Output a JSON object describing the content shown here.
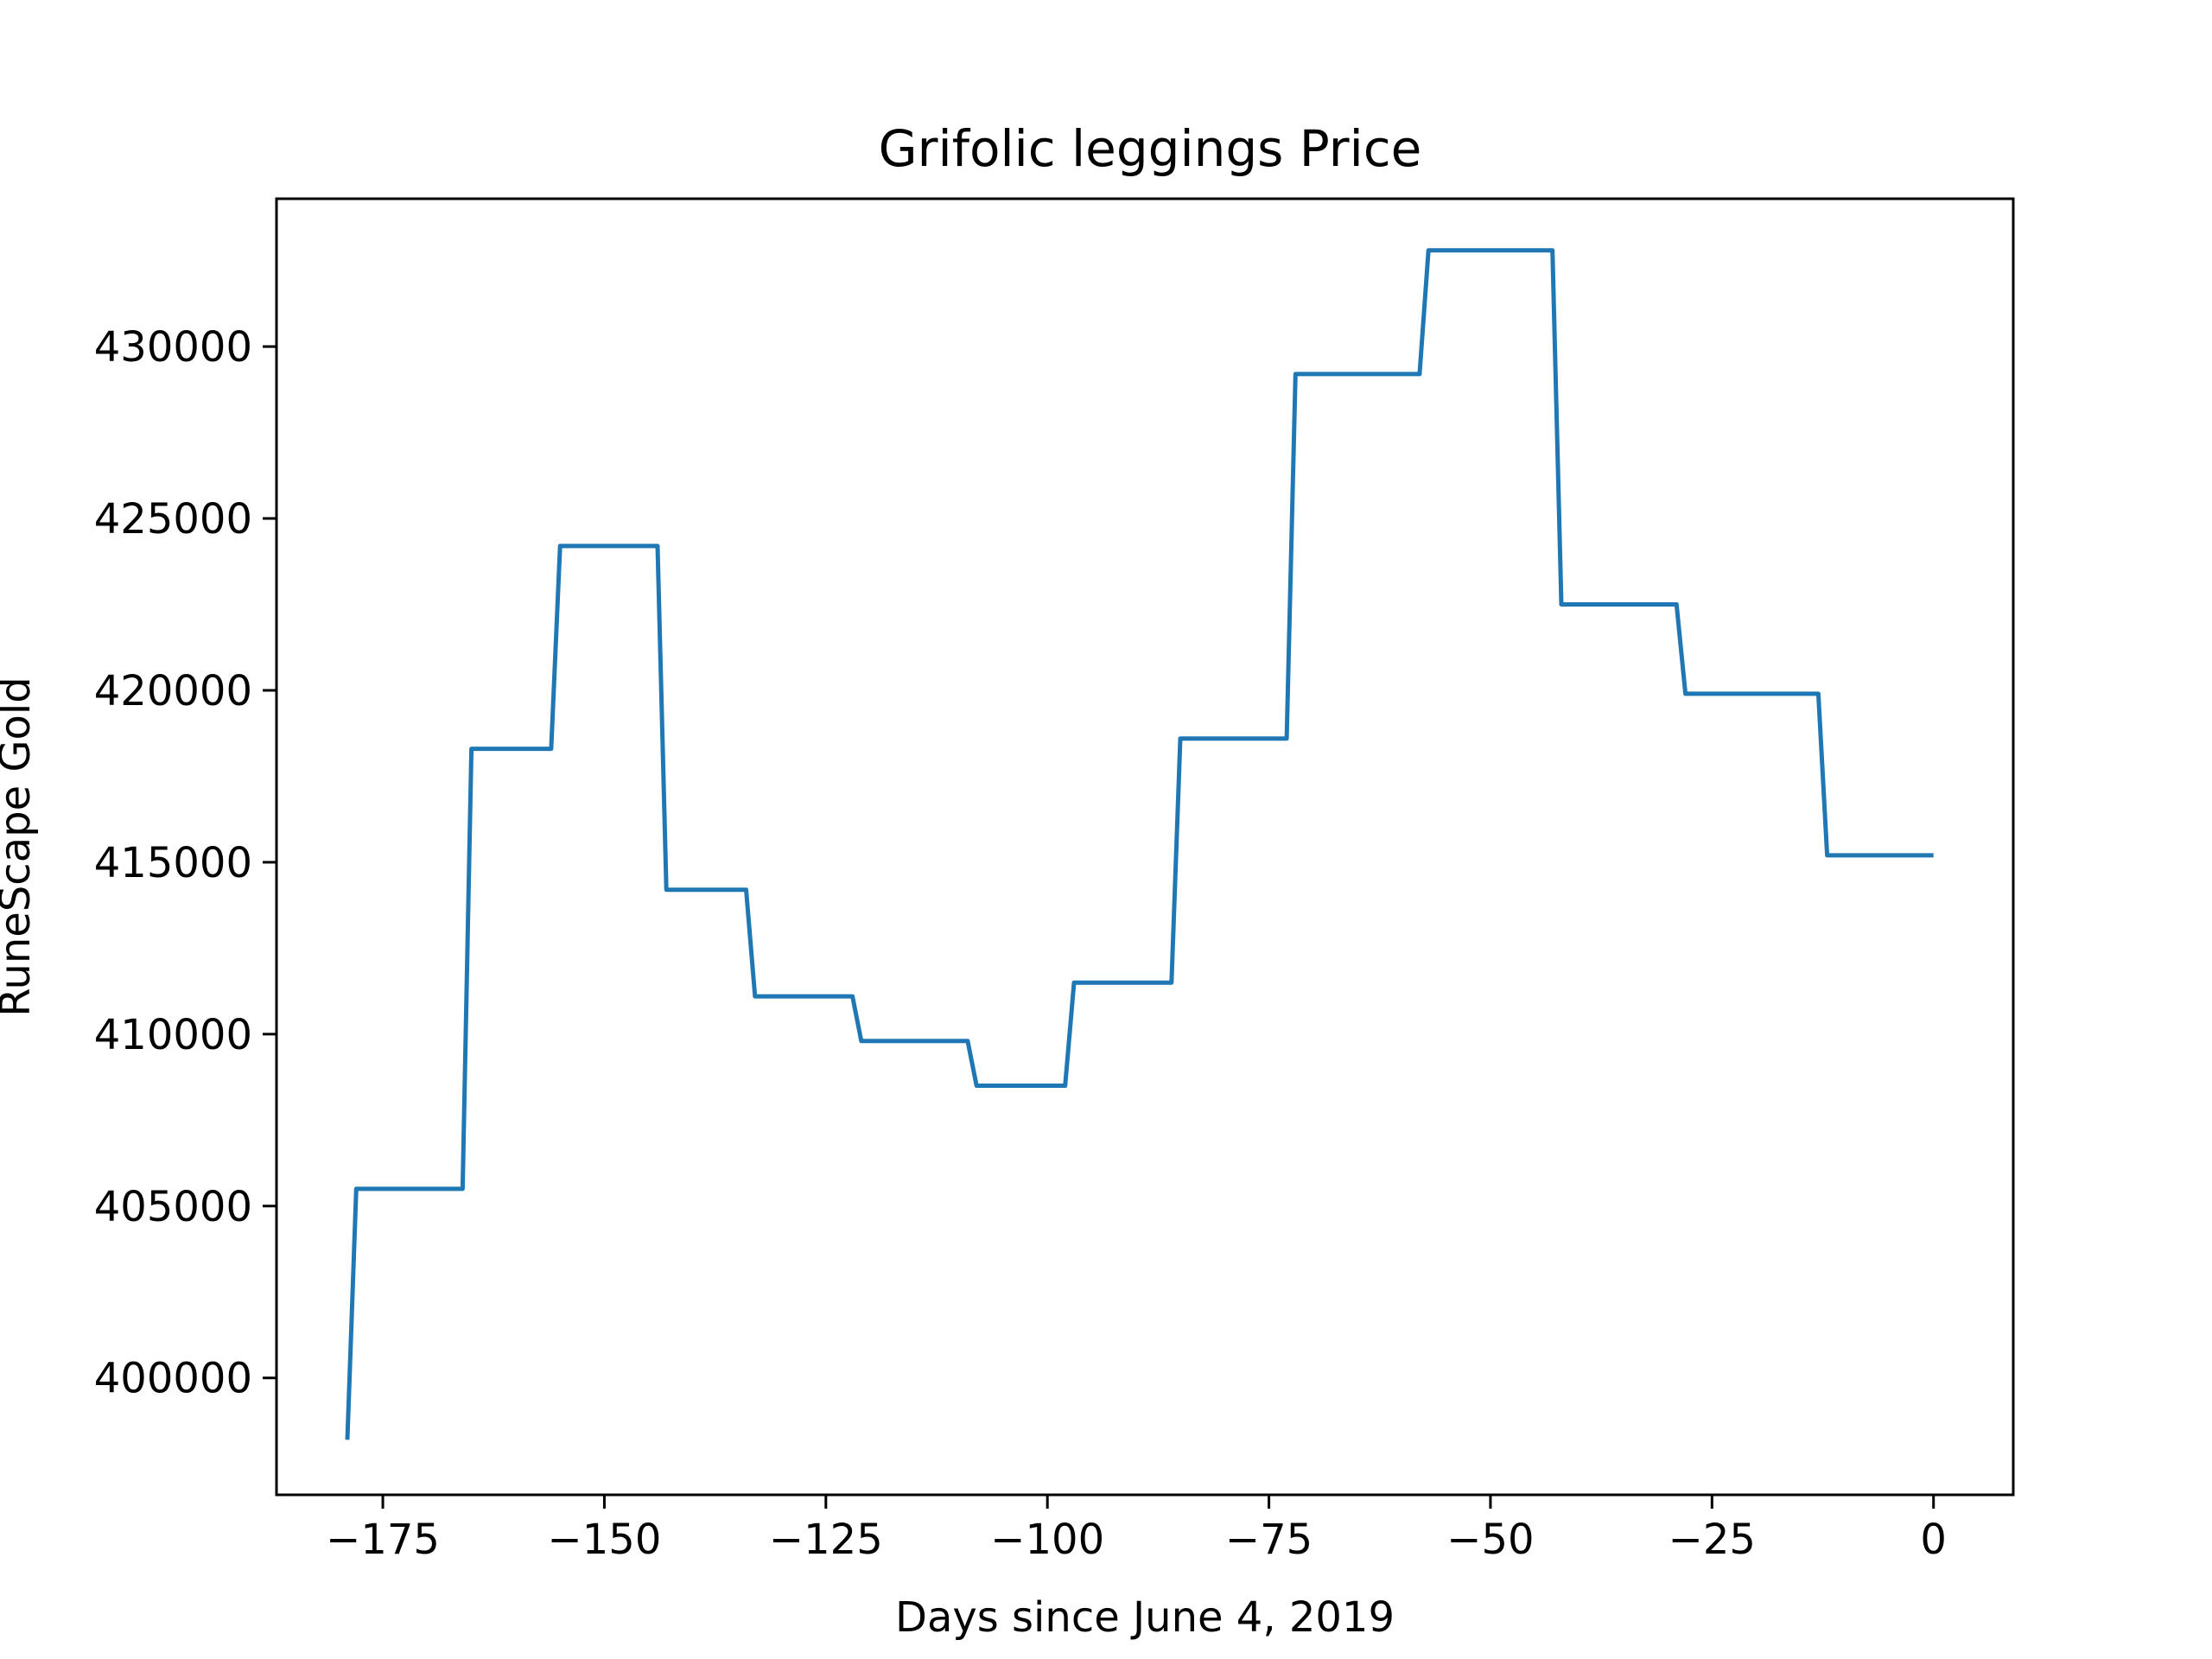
{
  "chart_data": {
    "type": "line",
    "title": "Grifolic leggings Price",
    "xlabel": "Days since June 4, 2019",
    "ylabel": "RuneScape Gold",
    "xlim": [
      -187,
      9
    ],
    "ylim": [
      396600,
      434300
    ],
    "xticks": [
      -175,
      -150,
      -125,
      -100,
      -75,
      -50,
      -25,
      0
    ],
    "xtick_labels": [
      "−175",
      "−150",
      "−125",
      "−100",
      "−75",
      "−50",
      "−25",
      "0"
    ],
    "yticks": [
      400000,
      405000,
      410000,
      415000,
      420000,
      425000,
      430000
    ],
    "ytick_labels": [
      "400000",
      "405000",
      "410000",
      "415000",
      "420000",
      "425000",
      "430000"
    ],
    "grid": false,
    "legend": "none",
    "series": [
      {
        "color": "#1f77b4",
        "x": [
          -179,
          -178,
          -166,
          -165,
          -156,
          -155,
          -144,
          -143,
          -134,
          -133,
          -122,
          -121,
          -109,
          -108,
          -98,
          -97,
          -86,
          -85,
          -73,
          -72,
          -58,
          -57,
          -43,
          -42,
          -29,
          -28,
          -13,
          -12,
          0
        ],
        "y": [
          398200,
          405500,
          405500,
          418300,
          418300,
          424200,
          424200,
          414200,
          414200,
          411100,
          411100,
          409800,
          409800,
          408500,
          408500,
          411500,
          411500,
          418600,
          418600,
          429200,
          429200,
          432800,
          432800,
          422500,
          422500,
          419900,
          419900,
          415200,
          415200
        ]
      }
    ]
  }
}
